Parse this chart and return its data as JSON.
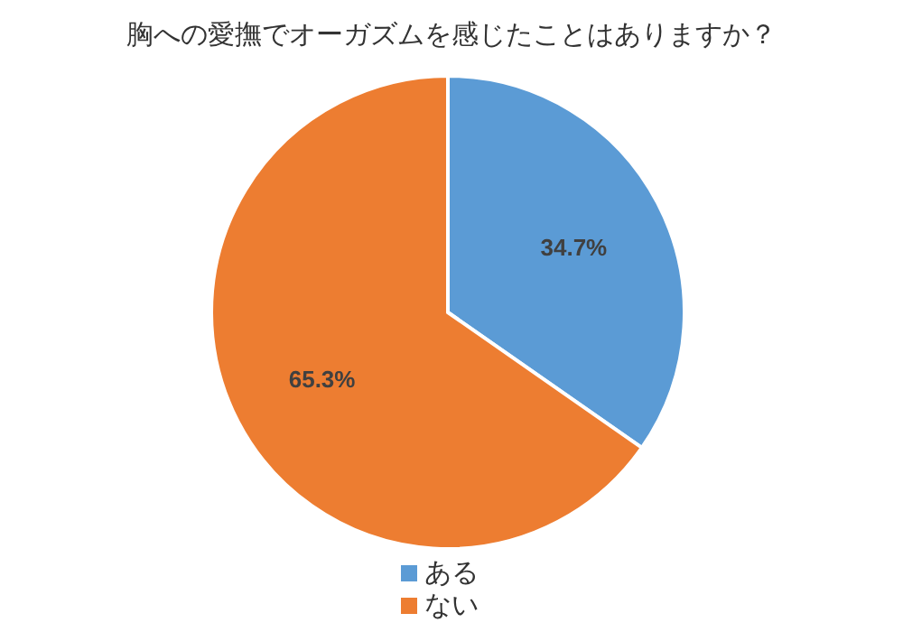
{
  "chart_data": {
    "type": "pie",
    "title": "胸への愛撫でオーガズムを感じたことはありますか？",
    "categories": [
      "ある",
      "ない"
    ],
    "values": [
      34.7,
      65.3
    ],
    "colors": [
      "#5b9bd5",
      "#ed7d31"
    ],
    "value_labels": [
      "34.7%",
      "65.3%"
    ],
    "legend": "bottom"
  }
}
